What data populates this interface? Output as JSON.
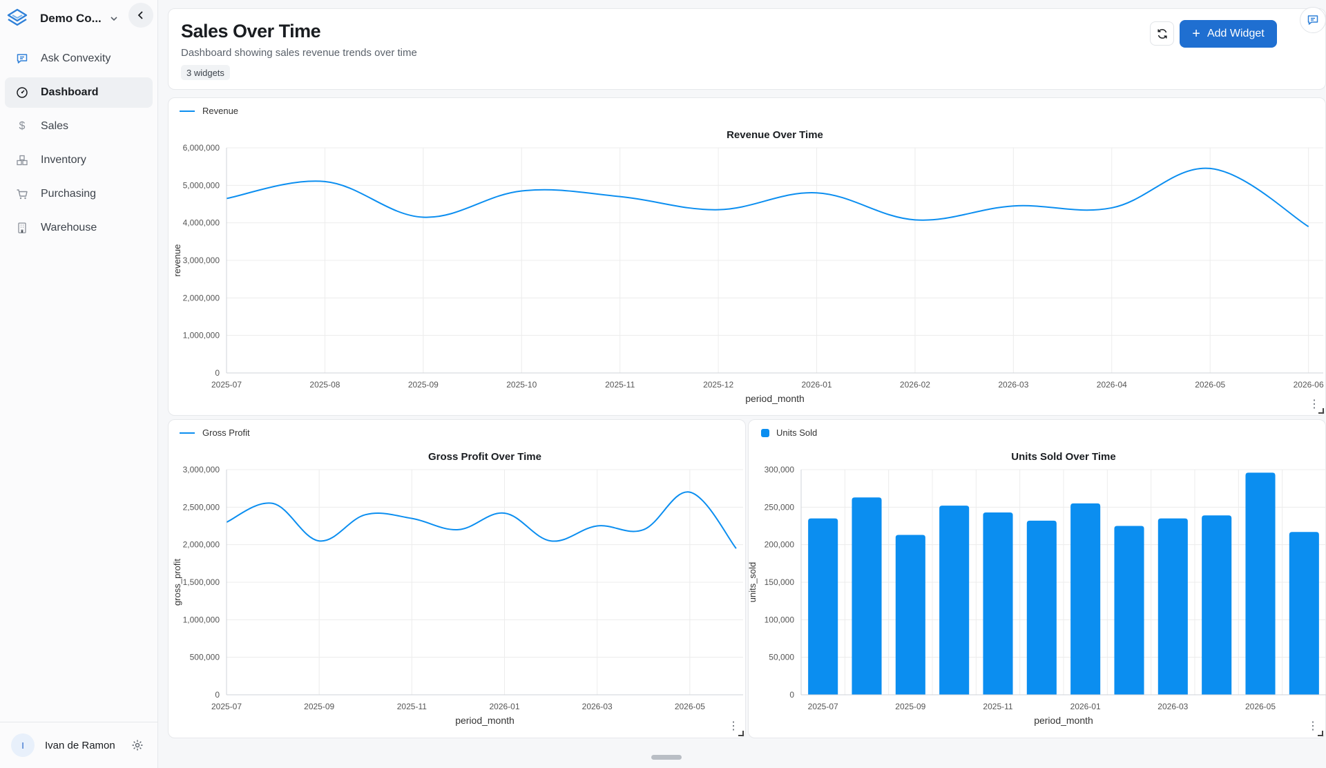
{
  "sidebar": {
    "org_name": "Demo Co...",
    "items": [
      {
        "label": "Ask Convexity",
        "icon": "chat-icon"
      },
      {
        "label": "Dashboard",
        "icon": "dashboard-icon"
      },
      {
        "label": "Sales",
        "icon": "dollar-icon"
      },
      {
        "label": "Inventory",
        "icon": "boxes-icon"
      },
      {
        "label": "Purchasing",
        "icon": "cart-icon"
      },
      {
        "label": "Warehouse",
        "icon": "building-icon"
      }
    ],
    "active_item": "Dashboard",
    "user": {
      "initial": "I",
      "name": "Ivan de Ramon"
    }
  },
  "header": {
    "title": "Sales Over Time",
    "subtitle": "Dashboard showing sales revenue trends over time",
    "widget_count": "3 widgets",
    "add_widget_label": "Add Widget"
  },
  "colors": {
    "accent": "#1f6fd1",
    "series": "#0b8ef0",
    "grid": "#ececec"
  },
  "chart_data": [
    {
      "type": "line",
      "title": "Revenue Over Time",
      "legend": "Revenue",
      "xlabel": "period_month",
      "ylabel": "revenue",
      "x": [
        "2025-07",
        "2025-08",
        "2025-09",
        "2025-10",
        "2025-11",
        "2025-12",
        "2026-01",
        "2026-02",
        "2026-03",
        "2026-04",
        "2026-05",
        "2026-06"
      ],
      "values": [
        4650000,
        5100000,
        4150000,
        4850000,
        4700000,
        4350000,
        4800000,
        4080000,
        4450000,
        4400000,
        5450000,
        3900000
      ],
      "ylim": [
        0,
        6000000
      ],
      "yticks": [
        "0",
        "1,000,000",
        "2,000,000",
        "3,000,000",
        "4,000,000",
        "5,000,000",
        "6,000,000"
      ],
      "xticks": [
        "2025-07",
        "2025-08",
        "2025-09",
        "2025-10",
        "2025-11",
        "2025-12",
        "2026-01",
        "2026-02",
        "2026-03",
        "2026-04",
        "2026-05",
        "2026-06"
      ],
      "grid": true,
      "legend_position": "top-left"
    },
    {
      "type": "line",
      "title": "Gross Profit Over Time",
      "legend": "Gross Profit",
      "xlabel": "period_month",
      "ylabel": "gross_profit",
      "x": [
        "2025-07",
        "2025-08",
        "2025-09",
        "2025-10",
        "2025-11",
        "2025-12",
        "2026-01",
        "2026-02",
        "2026-03",
        "2026-04",
        "2026-05",
        "2026-06"
      ],
      "values": [
        2300000,
        2550000,
        2050000,
        2400000,
        2350000,
        2200000,
        2420000,
        2050000,
        2250000,
        2200000,
        2700000,
        1950000
      ],
      "ylim": [
        0,
        3000000
      ],
      "yticks": [
        "0",
        "500,000",
        "1,000,000",
        "1,500,000",
        "2,000,000",
        "2,500,000",
        "3,000,000"
      ],
      "xticks": [
        "2025-07",
        "2025-09",
        "2025-11",
        "2026-01",
        "2026-03",
        "2026-05"
      ],
      "grid": true,
      "legend_position": "top-left"
    },
    {
      "type": "bar",
      "title": "Units Sold Over Time",
      "legend": "Units Sold",
      "xlabel": "period_month",
      "ylabel": "units_sold",
      "categories": [
        "2025-07",
        "2025-08",
        "2025-09",
        "2025-10",
        "2025-11",
        "2025-12",
        "2026-01",
        "2026-02",
        "2026-03",
        "2026-04",
        "2026-05",
        "2026-06"
      ],
      "values": [
        235000,
        263000,
        213000,
        252000,
        243000,
        232000,
        255000,
        225000,
        235000,
        239000,
        296000,
        217000
      ],
      "ylim": [
        0,
        300000
      ],
      "yticks": [
        "0",
        "50,000",
        "100,000",
        "150,000",
        "200,000",
        "250,000",
        "300,000"
      ],
      "xticks": [
        "2025-07",
        "2025-09",
        "2025-11",
        "2026-01",
        "2026-03",
        "2026-05"
      ],
      "grid": true,
      "legend_position": "top-left"
    }
  ]
}
